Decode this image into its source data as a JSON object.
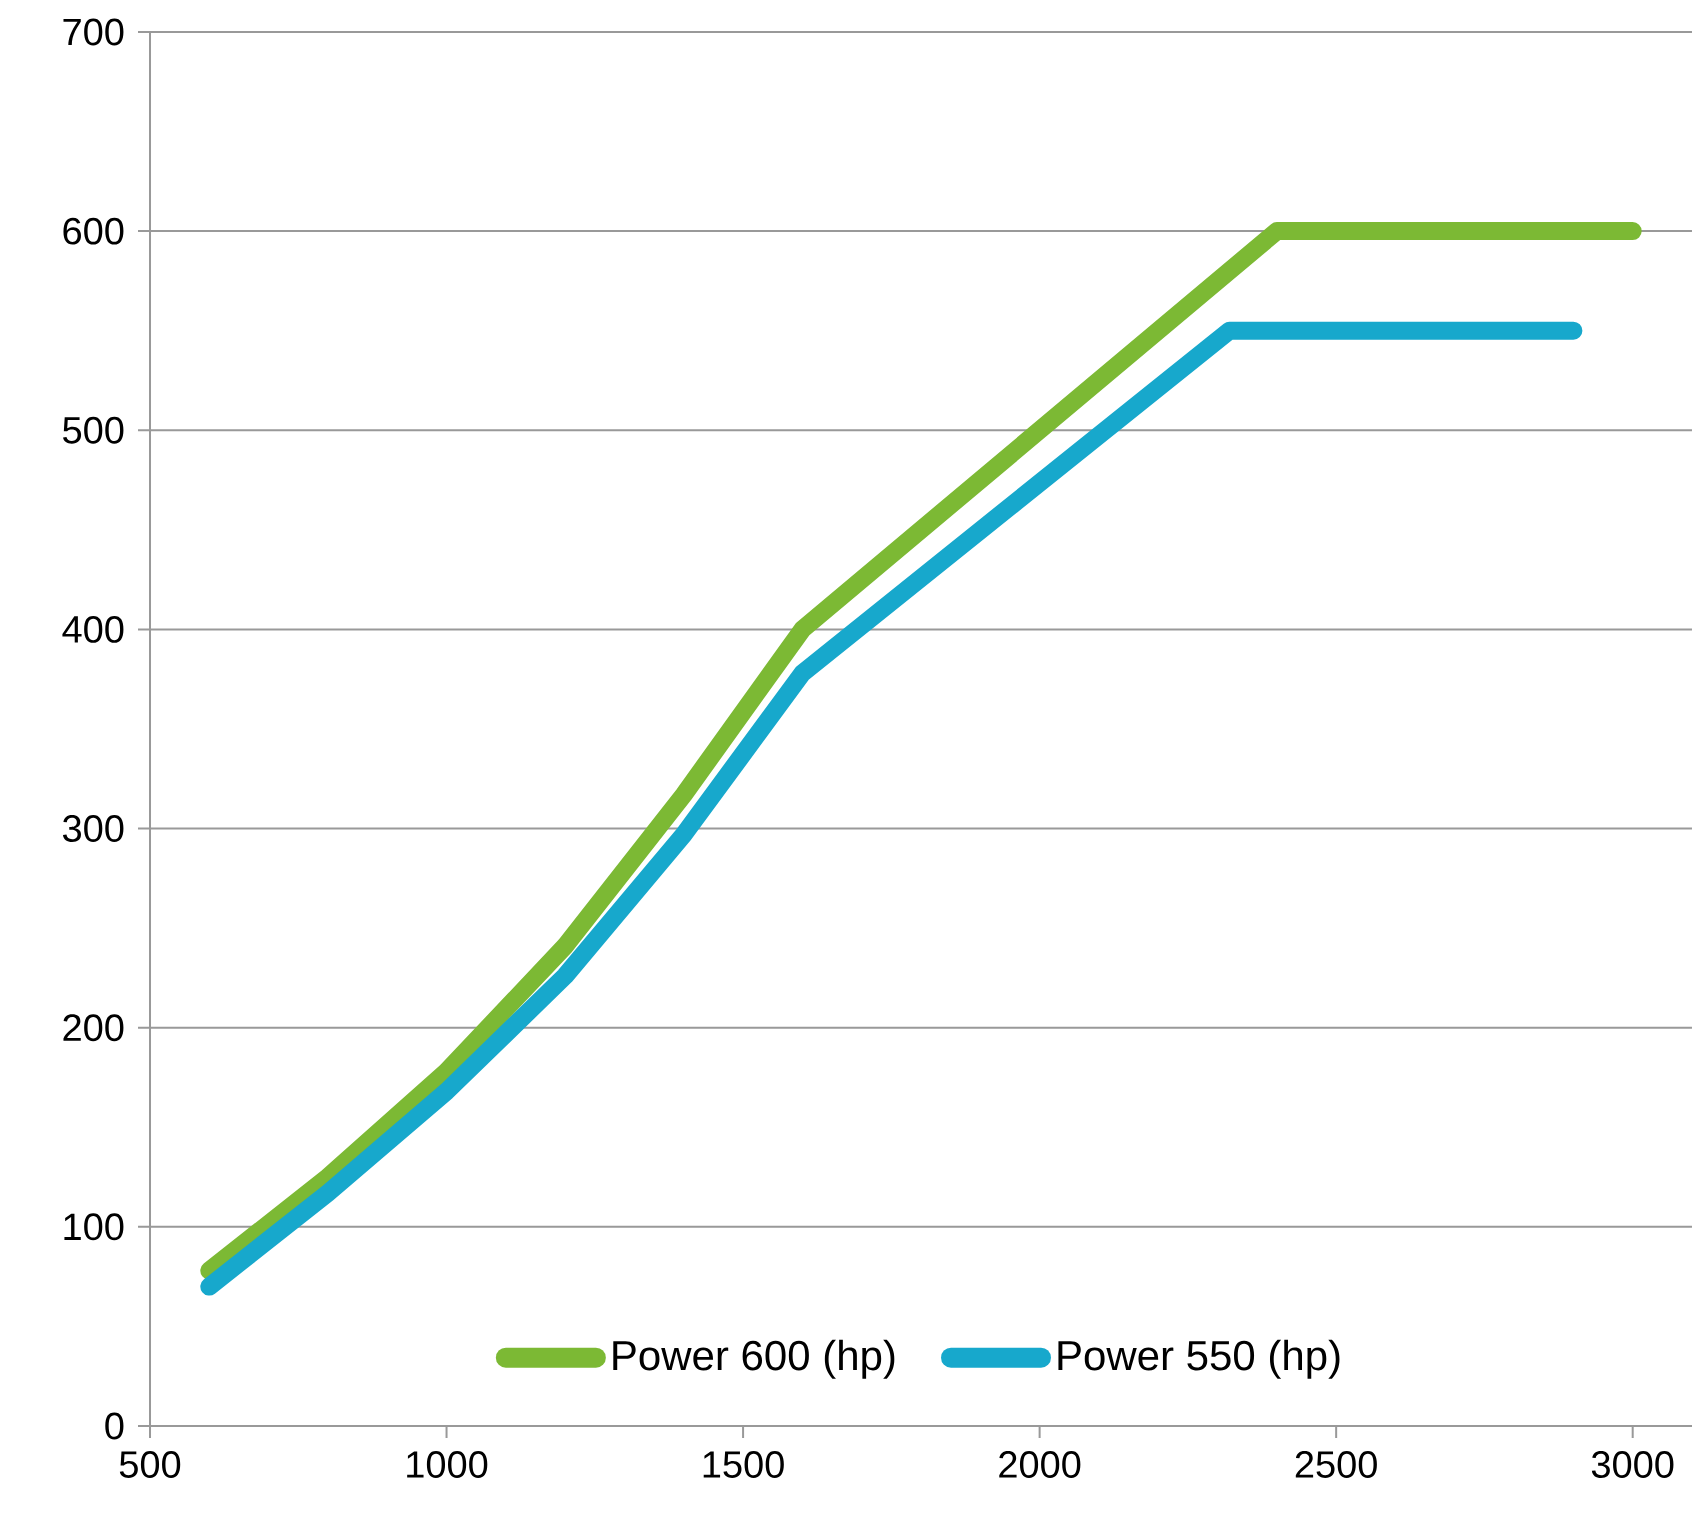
{
  "chart_data": {
    "type": "line",
    "xlim": [
      500,
      3100
    ],
    "ylim": [
      0,
      700
    ],
    "xticks": [
      500,
      1000,
      1500,
      2000,
      2500,
      3000
    ],
    "yticks": [
      0,
      100,
      200,
      300,
      400,
      500,
      600,
      700
    ],
    "grid": "y",
    "legend": "bottom",
    "marker": "none",
    "line_style": "solid",
    "series": [
      {
        "name": "Power 600 (hp)",
        "color": "#7cb934",
        "x": [
          600,
          800,
          1000,
          1200,
          1400,
          1600,
          2400,
          3000
        ],
        "values": [
          78,
          125,
          178,
          241,
          317,
          400,
          600,
          600
        ]
      },
      {
        "name": "Power 550 (hp)",
        "color": "#17a8cc",
        "x": [
          600,
          800,
          1000,
          1200,
          1400,
          1600,
          2320,
          2900
        ],
        "values": [
          70,
          117,
          168,
          226,
          297,
          378,
          550,
          550
        ]
      }
    ]
  }
}
